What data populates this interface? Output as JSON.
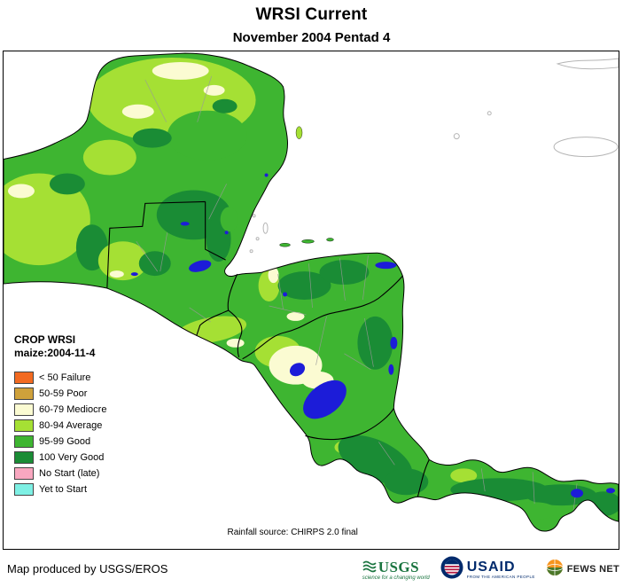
{
  "title": "WRSI Current",
  "subtitle": "November 2004 Pentad 4",
  "legend": {
    "heading": "CROP WRSI",
    "subheading": "maize:2004-11-4",
    "items": [
      {
        "label": "< 50  Failure",
        "color": "#F26A21"
      },
      {
        "label": "50-59 Poor",
        "color": "#CFA13B"
      },
      {
        "label": "60-79 Mediocre",
        "color": "#FBFBD2"
      },
      {
        "label": "80-94 Average",
        "color": "#A5E034"
      },
      {
        "label": "95-99 Good",
        "color": "#3EB531"
      },
      {
        "label": "100 Very Good",
        "color": "#1A8C35"
      },
      {
        "label": "No Start (late)",
        "color": "#F9A7C0"
      },
      {
        "label": "Yet to Start",
        "color": "#7EF0E4"
      }
    ]
  },
  "map": {
    "note": "Rainfall source: CHIRPS 2.0 final",
    "water_color": "#1C1CD8",
    "ocean_color": "#FFFFFF",
    "boundary_color": "#000000"
  },
  "footer": {
    "credit": "Map produced by USGS/EROS",
    "usgs": {
      "name": "USGS",
      "tagline": "science for a changing world"
    },
    "usaid": {
      "name": "USAID",
      "tagline": "FROM THE AMERICAN PEOPLE"
    },
    "fewsnet": {
      "name": "FEWS NET"
    }
  }
}
